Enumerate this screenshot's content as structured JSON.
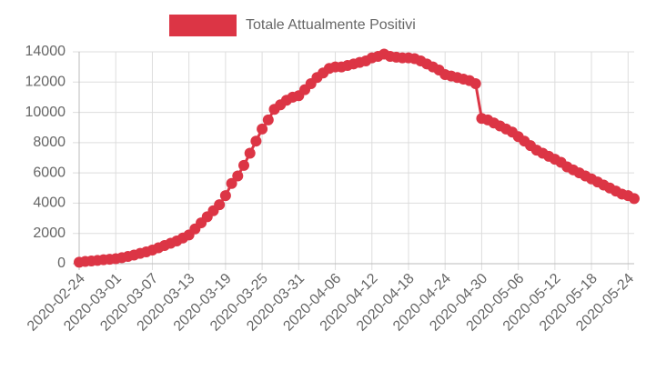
{
  "chart_data": {
    "type": "line",
    "categories": [
      "2020-02-24",
      null,
      null,
      null,
      null,
      null,
      "2020-03-01",
      null,
      null,
      null,
      null,
      null,
      "2020-03-07",
      null,
      null,
      null,
      null,
      null,
      "2020-03-13",
      null,
      null,
      null,
      null,
      null,
      "2020-03-19",
      null,
      null,
      null,
      null,
      null,
      "2020-03-25",
      null,
      null,
      null,
      null,
      null,
      "2020-03-31",
      null,
      null,
      null,
      null,
      null,
      "2020-04-06",
      null,
      null,
      null,
      null,
      null,
      "2020-04-12",
      null,
      null,
      null,
      null,
      null,
      "2020-04-18",
      null,
      null,
      null,
      null,
      null,
      "2020-04-24",
      null,
      null,
      null,
      null,
      null,
      "2020-04-30",
      null,
      null,
      null,
      null,
      null,
      "2020-05-06",
      null,
      null,
      null,
      null,
      null,
      "2020-05-12",
      null,
      null,
      null,
      null,
      null,
      "2020-05-18",
      null,
      null,
      null,
      null,
      null,
      "2020-05-24",
      null
    ],
    "series": [
      {
        "name": "Totale Attualmente Positivi",
        "color": "#dc3545",
        "values": [
          100,
          150,
          180,
          220,
          260,
          290,
          330,
          400,
          480,
          570,
          680,
          780,
          900,
          1050,
          1200,
          1350,
          1500,
          1700,
          1900,
          2300,
          2700,
          3100,
          3500,
          3900,
          4500,
          5300,
          5800,
          6500,
          7300,
          8100,
          8900,
          9500,
          10200,
          10500,
          10800,
          11000,
          11100,
          11500,
          11900,
          12300,
          12600,
          12900,
          13000,
          13000,
          13100,
          13200,
          13300,
          13400,
          13600,
          13700,
          13850,
          13700,
          13650,
          13600,
          13600,
          13550,
          13400,
          13200,
          13000,
          12800,
          12500,
          12400,
          12300,
          12200,
          12100,
          11900,
          9600,
          9500,
          9300,
          9100,
          8900,
          8700,
          8400,
          8100,
          7800,
          7500,
          7300,
          7100,
          6900,
          6700,
          6400,
          6200,
          6000,
          5800,
          5600,
          5400,
          5200,
          5000,
          4800,
          4600,
          4500,
          4300
        ]
      }
    ],
    "ylim": [
      0,
      14000
    ],
    "yticks": [
      0,
      2000,
      4000,
      6000,
      8000,
      10000,
      12000,
      14000
    ],
    "grid": true,
    "legend": "top"
  }
}
